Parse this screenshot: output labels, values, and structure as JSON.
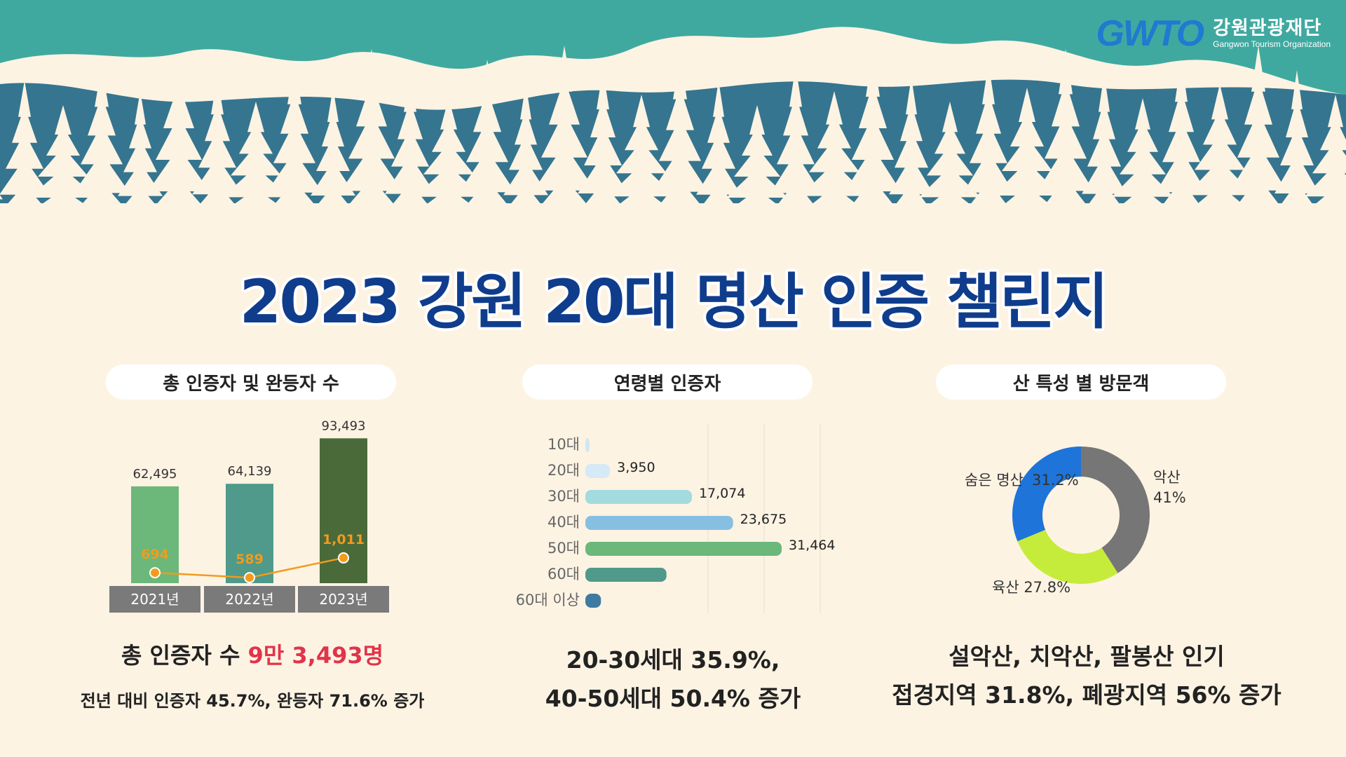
{
  "org": {
    "logo_mark": "GWTO",
    "name_ko": "강원관광재단",
    "name_en": "Gangwon Tourism Organization"
  },
  "title": "2023 강원 20대 명산 인증 챌린지",
  "panels": {
    "left": {
      "heading": "총 인증자 및 완등자 수",
      "caption_prefix": "총 인증자 수 ",
      "caption_highlight": "9만 3,493명",
      "caption2": "전년 대비 인증자 45.7%, 완등자 71.6% 증가"
    },
    "middle": {
      "heading": "연령별 인증자",
      "caption1": "20-30세대 35.9%,",
      "caption2": "40-50세대 50.4% 증가"
    },
    "right": {
      "heading": "산 특성 별 방문객",
      "caption1": "설악산, 치악산, 팔봉산 인기",
      "caption2": "접경지역 31.8%, 폐광지역 56% 증가"
    }
  },
  "colors": {
    "sky": "#3fa9a0",
    "mountain": "#35758f",
    "cream": "#fdf3e3",
    "title": "#0f3d8c",
    "highlight": "#e2334a",
    "line": "#f29b1c"
  },
  "chart_data": [
    {
      "type": "bar",
      "categories": [
        "2021년",
        "2022년",
        "2023년"
      ],
      "series": [
        {
          "values": [
            62495,
            64139,
            93493
          ],
          "labels": [
            "62,495",
            "64,139",
            "93,493"
          ],
          "colors": [
            "#6cb87a",
            "#4f9a8a",
            "#4a6a3a"
          ]
        },
        {
          "values": [
            694,
            589,
            1011
          ],
          "labels": [
            "694",
            "589",
            "1,011"
          ],
          "color": "#f29b1c",
          "render": "line"
        }
      ]
    },
    {
      "type": "bar",
      "orientation": "horizontal",
      "categories": [
        "10대",
        "20대",
        "30대",
        "40대",
        "50대",
        "60대",
        "60대 이상"
      ],
      "values": [
        300,
        3950,
        17074,
        23675,
        31464,
        13000,
        2500
      ],
      "labels": [
        "",
        "3,950",
        "17,074",
        "23,675",
        "31,464",
        "",
        ""
      ],
      "colors": [
        "#cfe7f3",
        "#d6e9f6",
        "#a3dbde",
        "#86bfe0",
        "#6cb87a",
        "#4f9a8a",
        "#3f7aa0"
      ]
    },
    {
      "type": "pie",
      "donut": true,
      "slices": [
        {
          "label": "악산",
          "value": 41,
          "value_text": "41%",
          "color": "#767676"
        },
        {
          "label": "육산",
          "value": 27.8,
          "value_text": "27.8%",
          "color": "#c5ec3a"
        },
        {
          "label": "숨은 명산",
          "value": 31.2,
          "value_text": "31.2%",
          "color": "#1e74d8"
        }
      ]
    }
  ]
}
